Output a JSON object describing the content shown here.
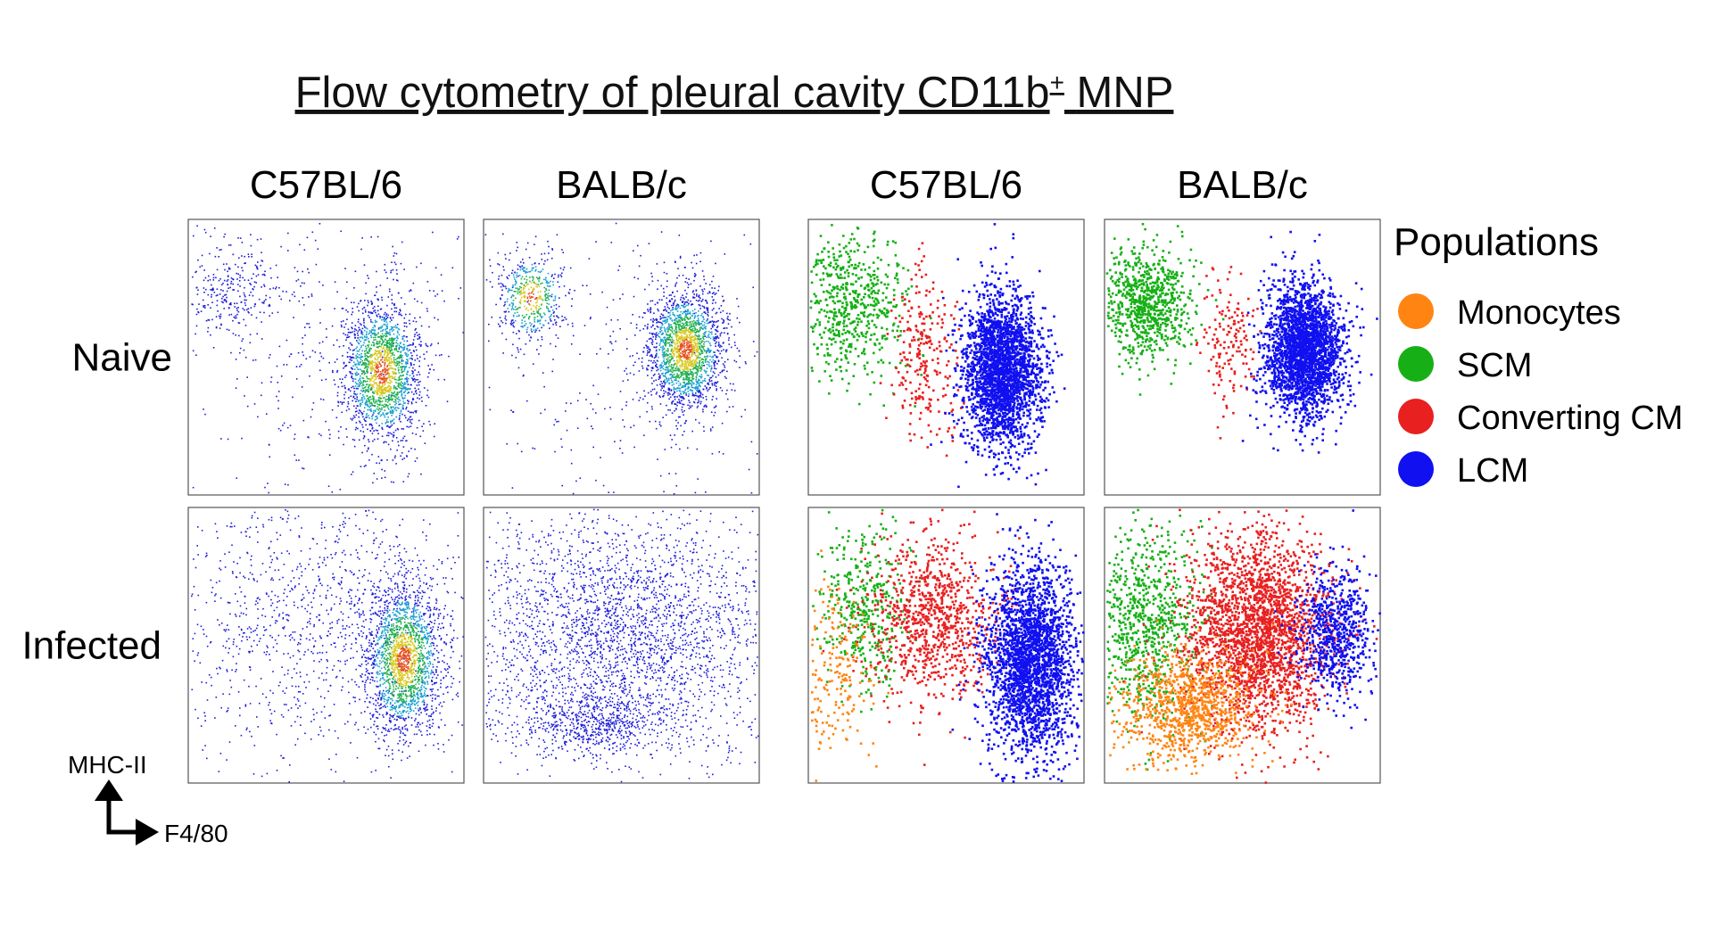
{
  "title": {
    "text": "Flow cytometry of pleural cavity CD11b",
    "superscript": "+",
    "suffix": "MNP"
  },
  "columns": [
    "C57BL/6",
    "BALB/c",
    "C57BL/6",
    "BALB/c"
  ],
  "rows": [
    "Naive",
    "Infected"
  ],
  "legend": {
    "title": "Populations",
    "items": [
      {
        "label": "Monocytes",
        "color": "#ff8412"
      },
      {
        "label": "SCM",
        "color": "#16b016"
      },
      {
        "label": "Converting CM",
        "color": "#e82020"
      },
      {
        "label": "LCM",
        "color": "#1010f0"
      }
    ]
  },
  "axes": {
    "y": "MHC-II",
    "x": "F4/80"
  }
}
